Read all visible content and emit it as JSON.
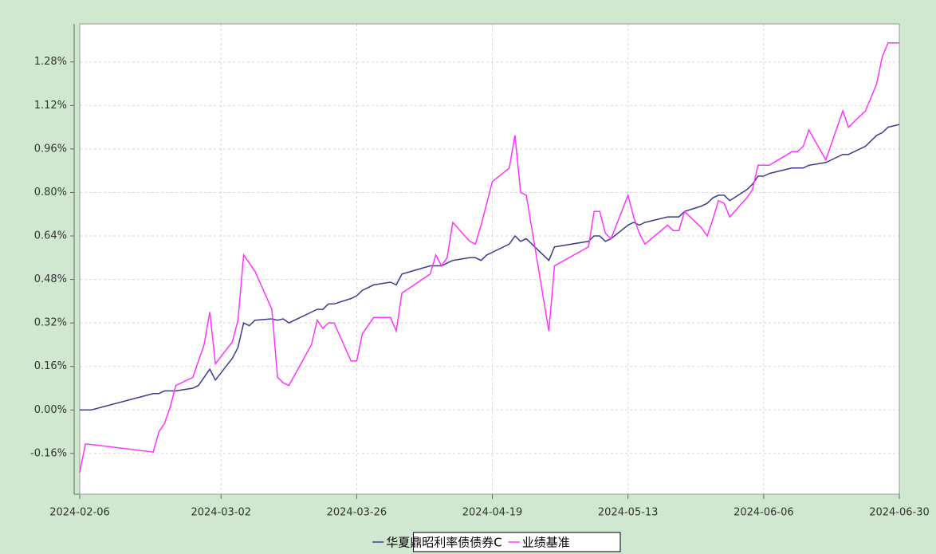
{
  "chart_data": {
    "type": "line",
    "x": [
      "2024-02-06",
      "2024-02-07",
      "2024-02-08",
      "2024-02-19",
      "2024-02-20",
      "2024-02-21",
      "2024-02-22",
      "2024-02-23",
      "2024-02-26",
      "2024-02-27",
      "2024-02-28",
      "2024-02-29",
      "2024-03-01",
      "2024-03-04",
      "2024-03-05",
      "2024-03-06",
      "2024-03-07",
      "2024-03-08",
      "2024-03-11",
      "2024-03-12",
      "2024-03-13",
      "2024-03-14",
      "2024-03-18",
      "2024-03-19",
      "2024-03-20",
      "2024-03-21",
      "2024-03-22",
      "2024-03-25",
      "2024-03-26",
      "2024-03-27",
      "2024-03-28",
      "2024-03-29",
      "2024-04-01",
      "2024-04-02",
      "2024-04-03",
      "2024-04-08",
      "2024-04-09",
      "2024-04-10",
      "2024-04-11",
      "2024-04-12",
      "2024-04-15",
      "2024-04-16",
      "2024-04-17",
      "2024-04-18",
      "2024-04-19",
      "2024-04-22",
      "2024-04-23",
      "2024-04-24",
      "2024-04-25",
      "2024-04-29",
      "2024-04-30",
      "2024-05-06",
      "2024-05-07",
      "2024-05-08",
      "2024-05-09",
      "2024-05-10",
      "2024-05-13",
      "2024-05-14",
      "2024-05-15",
      "2024-05-16",
      "2024-05-20",
      "2024-05-21",
      "2024-05-22",
      "2024-05-23",
      "2024-05-26",
      "2024-05-27",
      "2024-05-28",
      "2024-05-29",
      "2024-05-30",
      "2024-05-31",
      "2024-06-03",
      "2024-06-04",
      "2024-06-05",
      "2024-06-06",
      "2024-06-07",
      "2024-06-11",
      "2024-06-12",
      "2024-06-13",
      "2024-06-14",
      "2024-06-17",
      "2024-06-18",
      "2024-06-20",
      "2024-06-21",
      "2024-06-24",
      "2024-06-26",
      "2024-06-27",
      "2024-06-28",
      "2024-06-30"
    ],
    "series": [
      {
        "name": "华夏鼎昭利率债债券C",
        "color": "#3b3b8f",
        "values": [
          0,
          0,
          0,
          0.06,
          0.06,
          0.07,
          0.07,
          0.07,
          0.08,
          0.09,
          0.12,
          0.15,
          0.11,
          0.19,
          0.23,
          0.32,
          0.31,
          0.33,
          0.335,
          0.33,
          0.335,
          0.32,
          0.36,
          0.37,
          0.37,
          0.39,
          0.39,
          0.41,
          0.42,
          0.44,
          0.45,
          0.46,
          0.47,
          0.46,
          0.5,
          0.53,
          0.53,
          0.53,
          0.54,
          0.55,
          0.56,
          0.56,
          0.55,
          0.57,
          0.58,
          0.61,
          0.64,
          0.62,
          0.63,
          0.55,
          0.6,
          0.62,
          0.64,
          0.64,
          0.62,
          0.63,
          0.68,
          0.69,
          0.68,
          0.69,
          0.71,
          0.71,
          0.71,
          0.73,
          0.75,
          0.76,
          0.78,
          0.79,
          0.79,
          0.77,
          0.81,
          0.83,
          0.86,
          0.86,
          0.87,
          0.89,
          0.89,
          0.89,
          0.9,
          0.91,
          0.92,
          0.94,
          0.94,
          0.97,
          1.01,
          1.02,
          1.04,
          1.05
        ]
      },
      {
        "name": "业绩基准",
        "color": "#ff33ff",
        "values": [
          -0.23,
          -0.125,
          -0.127,
          -0.155,
          -0.08,
          -0.05,
          0.01,
          0.09,
          0.12,
          0.18,
          0.24,
          0.36,
          0.17,
          0.25,
          0.33,
          0.57,
          0.54,
          0.51,
          0.37,
          0.12,
          0.1,
          0.09,
          0.24,
          0.33,
          0.3,
          0.32,
          0.32,
          0.18,
          0.18,
          0.28,
          0.31,
          0.34,
          0.34,
          0.29,
          0.43,
          0.5,
          0.57,
          0.53,
          0.56,
          0.69,
          0.62,
          0.61,
          0.68,
          0.76,
          0.84,
          0.89,
          1.01,
          0.8,
          0.79,
          0.29,
          0.53,
          0.6,
          0.73,
          0.73,
          0.65,
          0.63,
          0.79,
          0.71,
          0.65,
          0.61,
          0.68,
          0.66,
          0.66,
          0.73,
          0.67,
          0.64,
          0.7,
          0.77,
          0.76,
          0.71,
          0.78,
          0.81,
          0.9,
          0.9,
          0.9,
          0.95,
          0.95,
          0.97,
          1.03,
          0.92,
          0.98,
          1.1,
          1.04,
          1.1,
          1.2,
          1.3,
          1.35,
          1.35
        ]
      }
    ],
    "xlim": [
      "2024-02-06",
      "2024-06-30"
    ],
    "xticks": [
      "2024-02-06",
      "2024-03-02",
      "2024-03-26",
      "2024-04-19",
      "2024-05-13",
      "2024-06-06",
      "2024-06-30"
    ],
    "ylim": [
      -0.31,
      1.42
    ],
    "yticks": [
      {
        "value": -0.16,
        "label": "-0.16%"
      },
      {
        "value": 0,
        "label": "0.00%"
      },
      {
        "value": 0.16,
        "label": "0.16%"
      },
      {
        "value": 0.32,
        "label": "0.32%"
      },
      {
        "value": 0.48,
        "label": "0.48%"
      },
      {
        "value": 0.64,
        "label": "0.64%"
      },
      {
        "value": 0.8,
        "label": "0.80%"
      },
      {
        "value": 0.96,
        "label": "0.96%"
      },
      {
        "value": 1.12,
        "label": "1.12%"
      },
      {
        "value": 1.28,
        "label": "1.28%"
      }
    ],
    "grid": true,
    "legend": "bottom"
  }
}
